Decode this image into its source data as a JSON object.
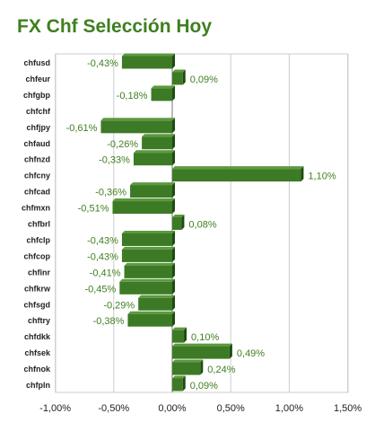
{
  "colors": {
    "accent": "#3f7f1f",
    "bar_front": "#3d7a25",
    "bar_top": "#5c9a3e",
    "bar_side": "#1f4a12",
    "grid": "#cccccc"
  },
  "chart_data": {
    "type": "bar",
    "orientation": "horizontal",
    "title": "FX Chf Selección Hoy",
    "xlabel": "",
    "ylabel": "",
    "xlim": [
      -0.01,
      0.015
    ],
    "x_ticks": [
      -0.01,
      -0.005,
      0,
      0.005,
      0.01,
      0.015
    ],
    "x_tick_labels": [
      "-1,00%",
      "-0,50%",
      "0,00%",
      "0,50%",
      "1,00%",
      "1,50%"
    ],
    "grid": true,
    "legend": "none",
    "categories": [
      "chfusd",
      "chfeur",
      "chfgbp",
      "chfchf",
      "chfjpy",
      "chfaud",
      "chfnzd",
      "chfcny",
      "chfcad",
      "chfmxn",
      "chfbrl",
      "chfclp",
      "chfcop",
      "chfinr",
      "chfkrw",
      "chfsgd",
      "chftry",
      "chfdkk",
      "chfsek",
      "chfnok",
      "chfpln"
    ],
    "values": [
      -0.0043,
      0.0009,
      -0.0018,
      0,
      -0.0061,
      -0.0026,
      -0.0033,
      0.011,
      -0.0036,
      -0.0051,
      0.0008,
      -0.0043,
      -0.0043,
      -0.0041,
      -0.0045,
      -0.0029,
      -0.0038,
      0.001,
      0.0049,
      0.0024,
      0.0009
    ],
    "value_labels": [
      "-0,43%",
      "0,09%",
      "-0,18%",
      "",
      "-0,61%",
      "-0,26%",
      "-0,33%",
      "1,10%",
      "-0,36%",
      "-0,51%",
      "0,08%",
      "-0,43%",
      "-0,43%",
      "-0,41%",
      "-0,45%",
      "-0,29%",
      "-0,38%",
      "0,10%",
      "0,49%",
      "0,24%",
      "0,09%"
    ]
  }
}
